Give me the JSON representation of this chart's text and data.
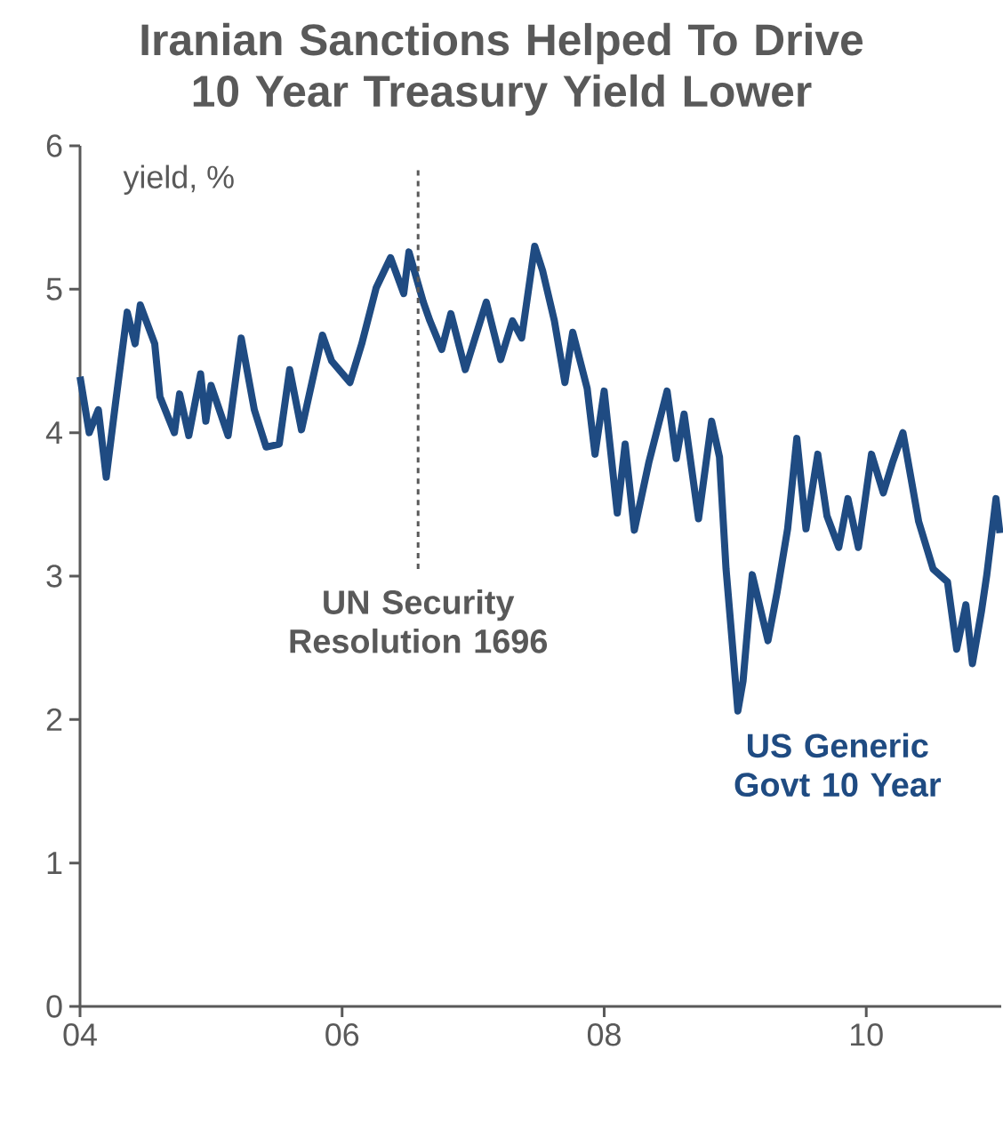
{
  "chart_data": {
    "type": "line",
    "title": "Iranian Sanctions Helped To Drive 10 Year Treasury Yield Lower",
    "ylabel": "yield, %",
    "xlim": [
      2004,
      2011.03
    ],
    "ylim": [
      0,
      6
    ],
    "xticks": [
      {
        "value": 2004,
        "label": "04"
      },
      {
        "value": 2006,
        "label": "06"
      },
      {
        "value": 2008,
        "label": "08"
      },
      {
        "value": 2010,
        "label": "10"
      }
    ],
    "yticks": [
      0,
      1,
      2,
      3,
      4,
      5,
      6
    ],
    "marker": "none",
    "ref_lines": [
      {
        "axis": "x",
        "value": 2006.58,
        "label": "UN Security Resolution 1696",
        "color": "#595959",
        "line_style": "dashed"
      }
    ],
    "series": [
      {
        "name": "US Generic Govt 10 Year",
        "color": "#1f4b82",
        "x": [
          2004.0,
          2004.07,
          2004.14,
          2004.2,
          2004.27,
          2004.36,
          2004.42,
          2004.46,
          2004.57,
          2004.61,
          2004.72,
          2004.76,
          2004.83,
          2004.92,
          2004.96,
          2005.0,
          2005.13,
          2005.23,
          2005.33,
          2005.42,
          2005.52,
          2005.6,
          2005.69,
          2005.85,
          2005.92,
          2006.06,
          2006.15,
          2006.26,
          2006.37,
          2006.47,
          2006.51,
          2006.62,
          2006.67,
          2006.76,
          2006.83,
          2006.94,
          2007.1,
          2007.21,
          2007.3,
          2007.37,
          2007.47,
          2007.53,
          2007.62,
          2007.7,
          2007.76,
          2007.87,
          2007.93,
          2008.0,
          2008.1,
          2008.16,
          2008.23,
          2008.34,
          2008.48,
          2008.55,
          2008.61,
          2008.72,
          2008.82,
          2008.88,
          2008.93,
          2008.98,
          2009.02,
          2009.06,
          2009.13,
          2009.25,
          2009.32,
          2009.4,
          2009.47,
          2009.54,
          2009.63,
          2009.7,
          2009.79,
          2009.86,
          2009.94,
          2010.04,
          2010.13,
          2010.2,
          2010.28,
          2010.4,
          2010.51,
          2010.62,
          2010.69,
          2010.76,
          2010.81,
          2010.88,
          2010.92,
          2010.99,
          2011.02
        ],
        "values": [
          4.39,
          4.0,
          4.16,
          3.69,
          4.2,
          4.84,
          4.62,
          4.89,
          4.62,
          4.25,
          4.0,
          4.27,
          3.98,
          4.41,
          4.08,
          4.33,
          3.98,
          4.66,
          4.16,
          3.9,
          3.92,
          4.44,
          4.02,
          4.68,
          4.5,
          4.35,
          4.62,
          5.01,
          5.22,
          4.97,
          5.26,
          4.91,
          4.78,
          4.58,
          4.83,
          4.44,
          4.91,
          4.51,
          4.78,
          4.66,
          5.3,
          5.13,
          4.78,
          4.35,
          4.7,
          4.31,
          3.85,
          4.29,
          3.44,
          3.92,
          3.32,
          3.79,
          4.29,
          3.82,
          4.13,
          3.4,
          4.08,
          3.83,
          3.05,
          2.51,
          2.06,
          2.27,
          3.01,
          2.55,
          2.89,
          3.33,
          3.96,
          3.33,
          3.85,
          3.42,
          3.2,
          3.54,
          3.2,
          3.85,
          3.58,
          3.79,
          4.0,
          3.38,
          3.05,
          2.96,
          2.49,
          2.8,
          2.39,
          2.76,
          3.01,
          3.54,
          3.3
        ]
      }
    ]
  }
}
